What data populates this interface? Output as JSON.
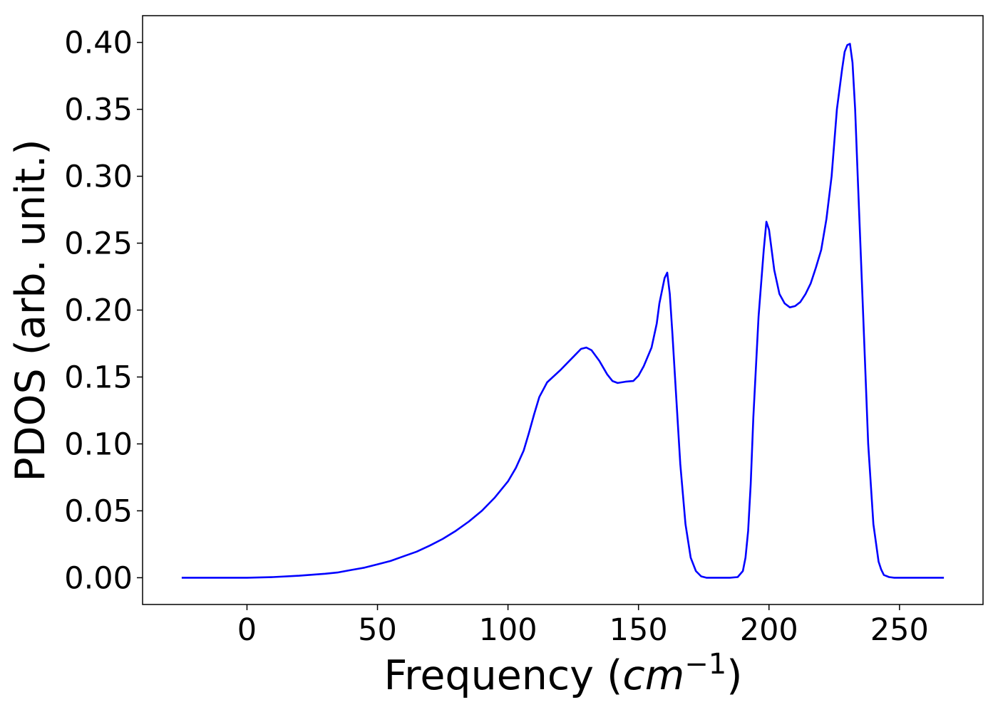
{
  "chart_data": {
    "type": "line",
    "title": "",
    "xlabel": "Frequency",
    "xlabel_open": "(",
    "xlabel_unit": "cm",
    "xlabel_unit_exponent": "−1",
    "xlabel_close": ")",
    "ylabel": "PDOS (arb. unit.)",
    "xlim": [
      -40,
      282
    ],
    "ylim": [
      -0.02,
      0.42
    ],
    "xticks": [
      0,
      50,
      100,
      150,
      200,
      250
    ],
    "xtick_labels": [
      "0",
      "50",
      "100",
      "150",
      "200",
      "250"
    ],
    "yticks": [
      0.0,
      0.05,
      0.1,
      0.15,
      0.2,
      0.25,
      0.3,
      0.35,
      0.4
    ],
    "ytick_labels": [
      "0.00",
      "0.05",
      "0.10",
      "0.15",
      "0.20",
      "0.25",
      "0.30",
      "0.35",
      "0.40"
    ],
    "grid": false,
    "legend": "none",
    "series": [
      {
        "color": "#0000ff",
        "x": [
          -25,
          -10,
          0,
          10,
          20,
          30,
          35,
          40,
          45,
          50,
          55,
          60,
          65,
          70,
          75,
          80,
          85,
          90,
          95,
          100,
          103,
          106,
          108,
          110,
          112,
          115,
          120,
          125,
          128,
          130,
          132,
          135,
          138,
          140,
          142,
          145,
          148,
          150,
          152,
          155,
          157,
          158,
          160,
          161,
          162,
          163,
          164,
          166,
          168,
          170,
          172,
          174,
          176,
          180,
          185,
          188,
          190,
          191,
          192,
          193,
          194,
          196,
          198,
          199,
          200,
          202,
          204,
          206,
          208,
          210,
          212,
          214,
          216,
          218,
          220,
          222,
          224,
          226,
          228,
          229,
          230,
          231,
          232,
          233,
          234,
          236,
          238,
          240,
          242,
          243,
          244,
          246,
          248,
          255,
          267
        ],
        "y": [
          0.0,
          0.0,
          0.0,
          0.0005,
          0.0015,
          0.003,
          0.004,
          0.0058,
          0.0075,
          0.01,
          0.0125,
          0.016,
          0.0195,
          0.024,
          0.029,
          0.035,
          0.042,
          0.05,
          0.06,
          0.072,
          0.082,
          0.095,
          0.108,
          0.122,
          0.135,
          0.146,
          0.155,
          0.165,
          0.171,
          0.172,
          0.17,
          0.162,
          0.152,
          0.147,
          0.1455,
          0.1465,
          0.147,
          0.151,
          0.158,
          0.172,
          0.19,
          0.205,
          0.224,
          0.228,
          0.212,
          0.182,
          0.15,
          0.085,
          0.04,
          0.015,
          0.005,
          0.001,
          0.0,
          0.0,
          0.0,
          0.0005,
          0.005,
          0.015,
          0.035,
          0.07,
          0.12,
          0.195,
          0.245,
          0.266,
          0.26,
          0.23,
          0.212,
          0.205,
          0.202,
          0.203,
          0.206,
          0.212,
          0.22,
          0.232,
          0.245,
          0.268,
          0.3,
          0.35,
          0.38,
          0.393,
          0.398,
          0.399,
          0.385,
          0.35,
          0.3,
          0.2,
          0.1,
          0.04,
          0.012,
          0.006,
          0.002,
          0.0005,
          0.0,
          0.0,
          0.0
        ]
      }
    ]
  }
}
